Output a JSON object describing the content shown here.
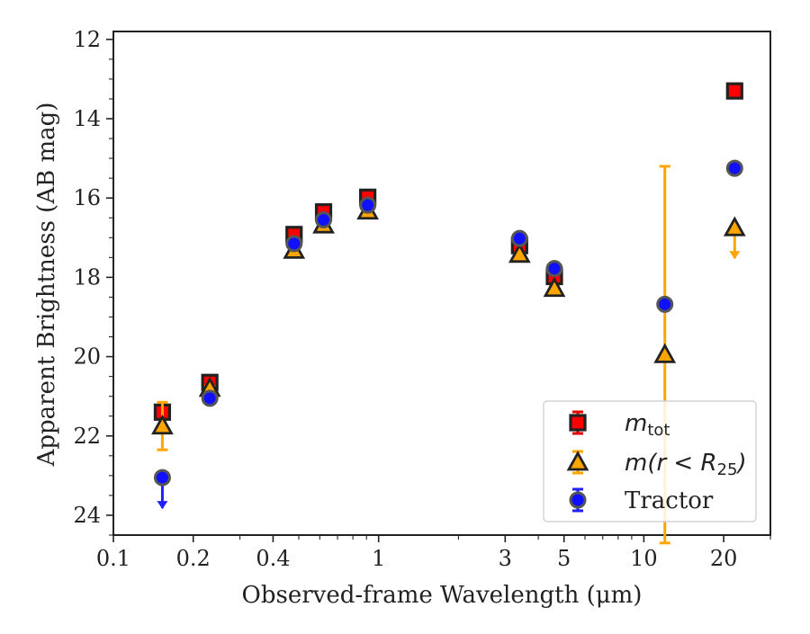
{
  "chart_data": {
    "type": "scatter",
    "xlabel": "Observed-frame Wavelength (μm)",
    "ylabel": "Apparent Brightness (AB mag)",
    "x_scale": "log",
    "xlim": [
      0.1,
      30
    ],
    "ylim": [
      24.5,
      11.8
    ],
    "y_inverted": true,
    "x_ticks": [
      {
        "value": 0.1,
        "label": "0.1"
      },
      {
        "value": 0.2,
        "label": "0.2"
      },
      {
        "value": 0.4,
        "label": "0.4"
      },
      {
        "value": 1,
        "label": "1"
      },
      {
        "value": 3,
        "label": "3"
      },
      {
        "value": 5,
        "label": "5"
      },
      {
        "value": 10,
        "label": "10"
      },
      {
        "value": 20,
        "label": "20"
      }
    ],
    "y_ticks": [
      {
        "value": 12,
        "label": "12"
      },
      {
        "value": 14,
        "label": "14"
      },
      {
        "value": 16,
        "label": "16"
      },
      {
        "value": 18,
        "label": "18"
      },
      {
        "value": 20,
        "label": "20"
      },
      {
        "value": 22,
        "label": "22"
      },
      {
        "value": 24,
        "label": "24"
      }
    ],
    "grid": false,
    "legend_position": "lower-right",
    "series": [
      {
        "name": "m_tot",
        "legend_main": "m",
        "legend_sub": "tot",
        "marker": "square",
        "color": "#ff0000",
        "errcolor": "#e00000",
        "points": [
          {
            "x": 0.153,
            "y": 21.4,
            "err": 0.08
          },
          {
            "x": 0.231,
            "y": 20.65,
            "err": 0.05
          },
          {
            "x": 0.48,
            "y": 16.92,
            "err": 0.03
          },
          {
            "x": 0.62,
            "y": 16.35,
            "err": 0.03
          },
          {
            "x": 0.91,
            "y": 15.98,
            "err": 0.03
          },
          {
            "x": 3.4,
            "y": 17.2,
            "err": 0.03
          },
          {
            "x": 4.6,
            "y": 17.98,
            "err": 0.03
          },
          {
            "x": 22,
            "y": 13.3,
            "err": 0.05
          }
        ]
      },
      {
        "name": "m(r < R25)",
        "legend_text": "m(r < R",
        "legend_sub": "25",
        "legend_end": ")",
        "marker": "triangle",
        "color": "#ffa500",
        "errcolor": "#ffa500",
        "points": [
          {
            "x": 0.153,
            "y": 21.75,
            "err": 0.6
          },
          {
            "x": 0.231,
            "y": 20.8,
            "err": 0.05
          },
          {
            "x": 0.48,
            "y": 17.32,
            "err": 0.03
          },
          {
            "x": 0.62,
            "y": 16.68,
            "err": 0.03
          },
          {
            "x": 0.91,
            "y": 16.33,
            "err": 0.03
          },
          {
            "x": 3.4,
            "y": 17.42,
            "err": 0.03
          },
          {
            "x": 4.6,
            "y": 18.28,
            "err": 0.05
          },
          {
            "x": 12,
            "y": 19.95,
            "err": 4.75
          },
          {
            "x": 22,
            "y": 16.75,
            "upper_limit": true
          }
        ]
      },
      {
        "name": "Tractor",
        "legend_text": "Tractor",
        "marker": "circle",
        "color": "#1010ff",
        "errcolor": "#2020ff",
        "points": [
          {
            "x": 0.153,
            "y": 23.05,
            "upper_limit": true
          },
          {
            "x": 0.231,
            "y": 21.05,
            "err": 0.03
          },
          {
            "x": 0.48,
            "y": 17.15,
            "err": 0.03
          },
          {
            "x": 0.62,
            "y": 16.55,
            "err": 0.03
          },
          {
            "x": 0.91,
            "y": 16.18,
            "err": 0.03
          },
          {
            "x": 3.4,
            "y": 17.02,
            "err": 0.03
          },
          {
            "x": 4.6,
            "y": 17.78,
            "err": 0.03
          },
          {
            "x": 12,
            "y": 18.68,
            "err": 0.05
          },
          {
            "x": 22,
            "y": 15.25,
            "err": 0.04
          }
        ]
      }
    ]
  }
}
